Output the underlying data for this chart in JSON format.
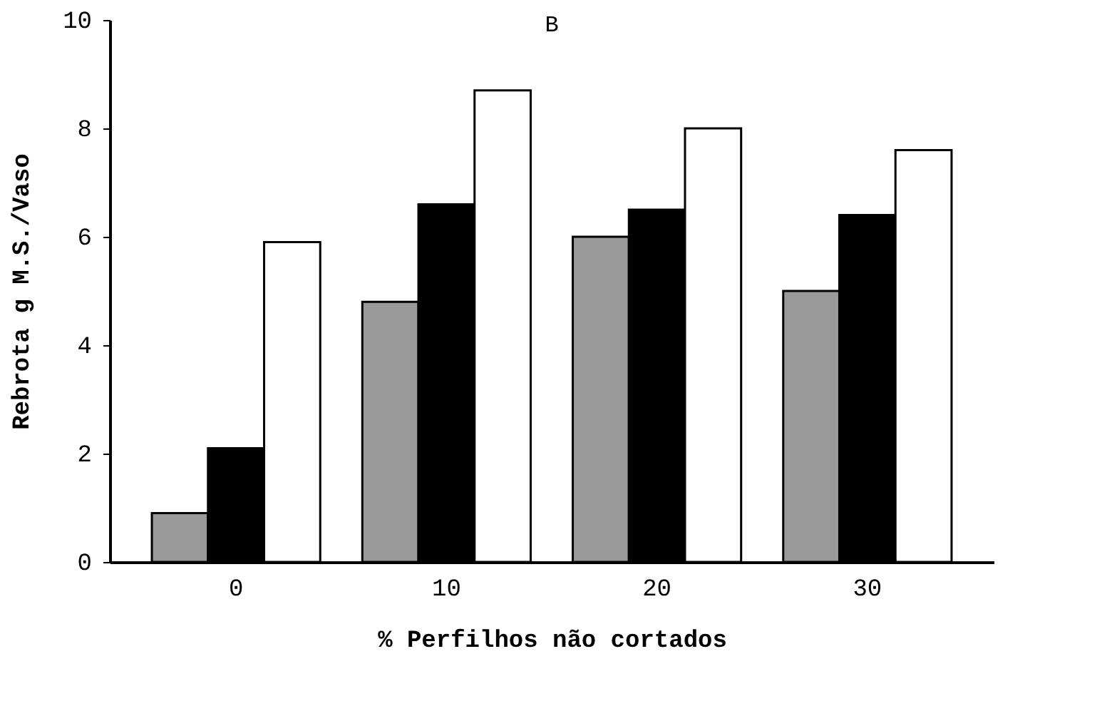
{
  "chart_data": {
    "type": "bar",
    "title": "B",
    "xlabel": "% Perfilhos não cortados",
    "ylabel": "Rebrota g M.S./Vaso",
    "categories": [
      "0",
      "10",
      "20",
      "30"
    ],
    "series": [
      {
        "color": "#9a9a9a",
        "values": [
          0.9,
          4.8,
          6.0,
          5.0
        ]
      },
      {
        "color": "#000000",
        "values": [
          2.1,
          6.6,
          6.5,
          6.4
        ]
      },
      {
        "color": "#ffffff",
        "values": [
          5.9,
          8.7,
          8.0,
          7.6
        ]
      }
    ],
    "ylim": [
      0,
      10
    ],
    "yticks": [
      0,
      2,
      4,
      6,
      8,
      10
    ],
    "grid": false,
    "legend": false
  }
}
